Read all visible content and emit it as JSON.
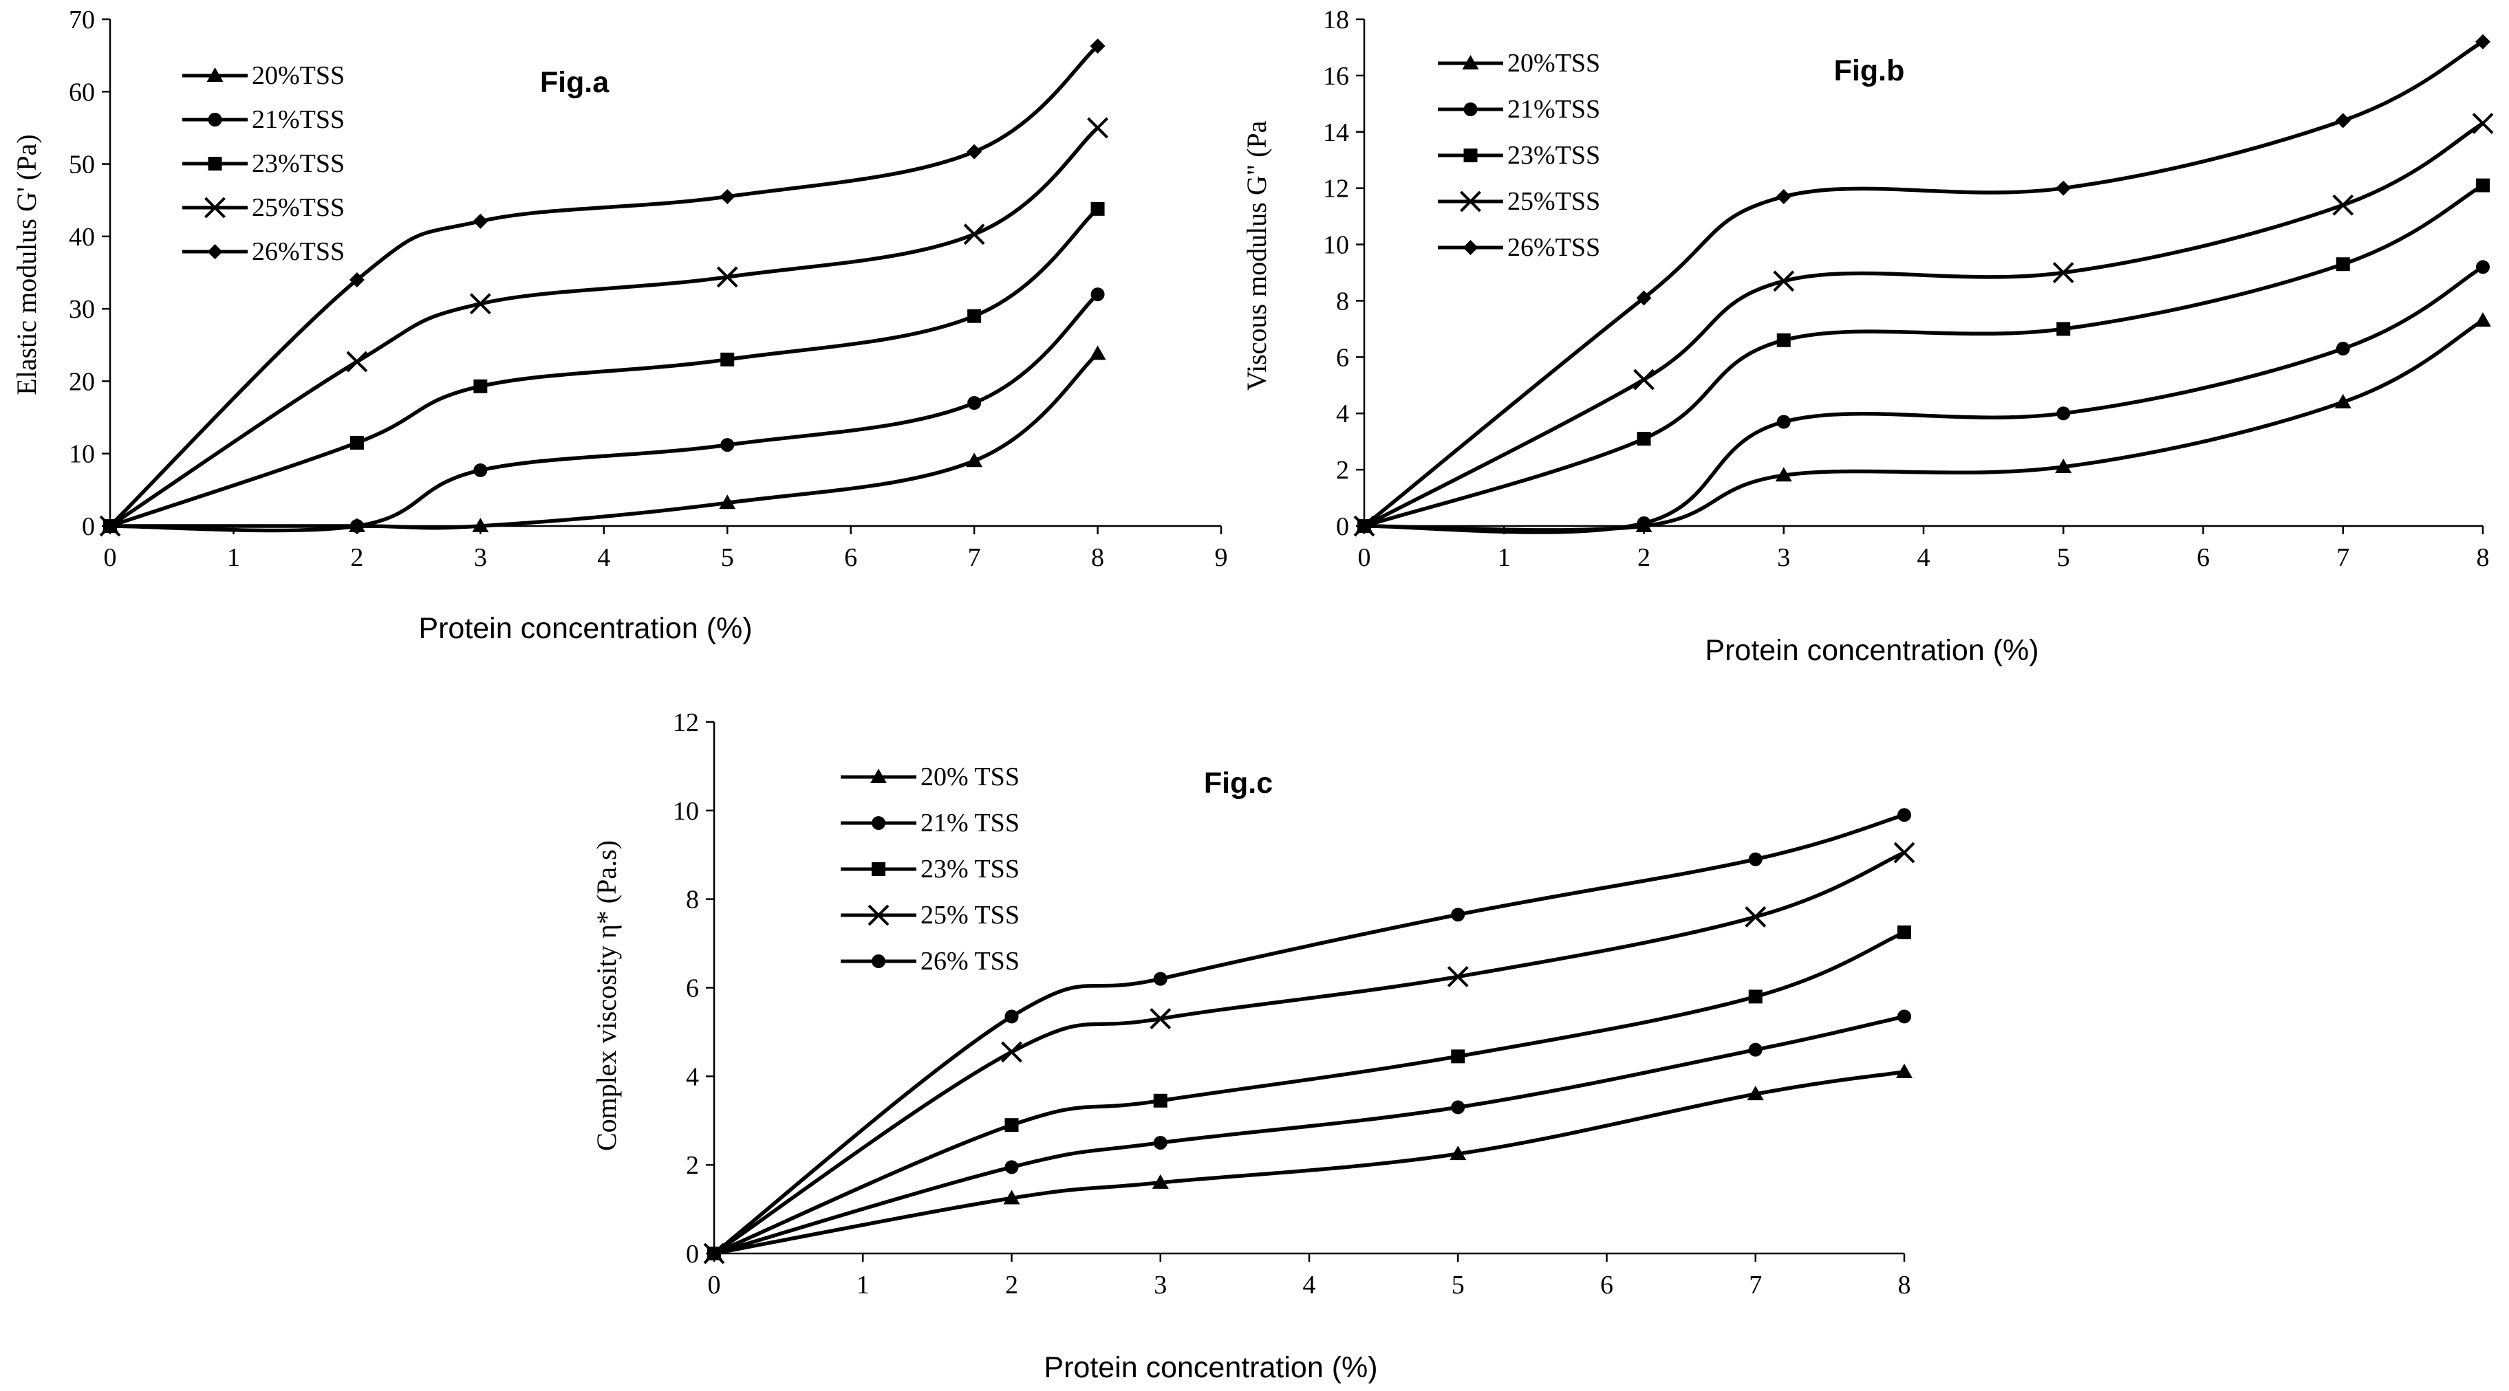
{
  "chart_data": [
    {
      "id": "a",
      "type": "line",
      "title": "Fig.a",
      "xlabel": "Protein concentration (%)",
      "ylabel": "Elastic modulus G' (Pa)",
      "xlim": [
        0,
        9
      ],
      "ylim": [
        0,
        70
      ],
      "xticks": [
        "0",
        "1",
        "2",
        "3",
        "4",
        "5",
        "6",
        "7",
        "8",
        "9"
      ],
      "yticks": [
        "0",
        "10",
        "20",
        "30",
        "40",
        "50",
        "60",
        "70"
      ],
      "x": [
        0,
        2,
        3,
        5,
        7,
        8
      ],
      "legend_position": "top-left",
      "series": [
        {
          "name": "20%TSS",
          "marker": "triangle",
          "values": [
            0,
            0,
            0,
            3.2,
            9,
            23.8
          ]
        },
        {
          "name": "21%TSS",
          "marker": "circle",
          "values": [
            0,
            0,
            7.7,
            11.2,
            17,
            32
          ]
        },
        {
          "name": "23%TSS",
          "marker": "square",
          "values": [
            0,
            11.5,
            19.3,
            23,
            29,
            43.8
          ]
        },
        {
          "name": "25%TSS",
          "marker": "x",
          "values": [
            0,
            22.7,
            30.7,
            34.4,
            40.3,
            55
          ]
        },
        {
          "name": "26%TSS",
          "marker": "diamond",
          "values": [
            0,
            34,
            42.1,
            45.5,
            51.7,
            66.3
          ]
        }
      ]
    },
    {
      "id": "b",
      "type": "line",
      "title": "Fig.b",
      "xlabel": "Protein concentration (%)",
      "ylabel": "Viscous modulus G\" (Pa",
      "xlim": [
        0,
        8
      ],
      "ylim": [
        0,
        18
      ],
      "xticks": [
        "0",
        "1",
        "2",
        "3",
        "4",
        "5",
        "6",
        "7",
        "8"
      ],
      "yticks": [
        "0",
        "2",
        "4",
        "6",
        "8",
        "10",
        "12",
        "14",
        "16",
        "18"
      ],
      "x": [
        0,
        2,
        3,
        5,
        7,
        8
      ],
      "legend_position": "top-left",
      "series": [
        {
          "name": "20%TSS",
          "marker": "triangle",
          "values": [
            0,
            0,
            1.8,
            2.1,
            4.4,
            7.3
          ]
        },
        {
          "name": "21%TSS",
          "marker": "circle",
          "values": [
            0,
            0.1,
            3.7,
            4,
            6.3,
            9.2
          ]
        },
        {
          "name": "23%TSS",
          "marker": "square",
          "values": [
            0,
            3.1,
            6.6,
            7,
            9.3,
            12.1
          ]
        },
        {
          "name": "25%TSS",
          "marker": "x",
          "values": [
            0,
            5.2,
            8.7,
            9,
            11.4,
            14.3
          ]
        },
        {
          "name": "26%TSS",
          "marker": "diamond",
          "values": [
            0,
            8.1,
            11.7,
            12,
            14.4,
            17.2
          ]
        }
      ]
    },
    {
      "id": "c",
      "type": "line",
      "title": "Fig.c",
      "xlabel": "Protein concentration (%)",
      "ylabel": "Complex viscosity   η* (Pa.s)",
      "xlim": [
        0,
        8
      ],
      "ylim": [
        0,
        12
      ],
      "xticks": [
        "0",
        "1",
        "2",
        "3",
        "4",
        "5",
        "6",
        "7",
        "8"
      ],
      "yticks": [
        "0",
        "2",
        "4",
        "6",
        "8",
        "10",
        "12"
      ],
      "x": [
        0,
        2,
        3,
        5,
        7,
        8
      ],
      "legend_position": "top-left",
      "series": [
        {
          "name": "20% TSS",
          "marker": "triangle",
          "values": [
            0,
            1.25,
            1.6,
            2.25,
            3.6,
            4.1
          ]
        },
        {
          "name": "21% TSS",
          "marker": "circle",
          "values": [
            0,
            1.95,
            2.5,
            3.3,
            4.6,
            5.35
          ]
        },
        {
          "name": "23% TSS",
          "marker": "square",
          "values": [
            0,
            2.9,
            3.45,
            4.45,
            5.8,
            7.25
          ]
        },
        {
          "name": "25% TSS",
          "marker": "x",
          "values": [
            0,
            4.55,
            5.3,
            6.25,
            7.6,
            9.05
          ]
        },
        {
          "name": "26% TSS",
          "marker": "circle",
          "values": [
            0,
            5.35,
            6.2,
            7.65,
            8.9,
            9.9
          ]
        }
      ]
    }
  ]
}
